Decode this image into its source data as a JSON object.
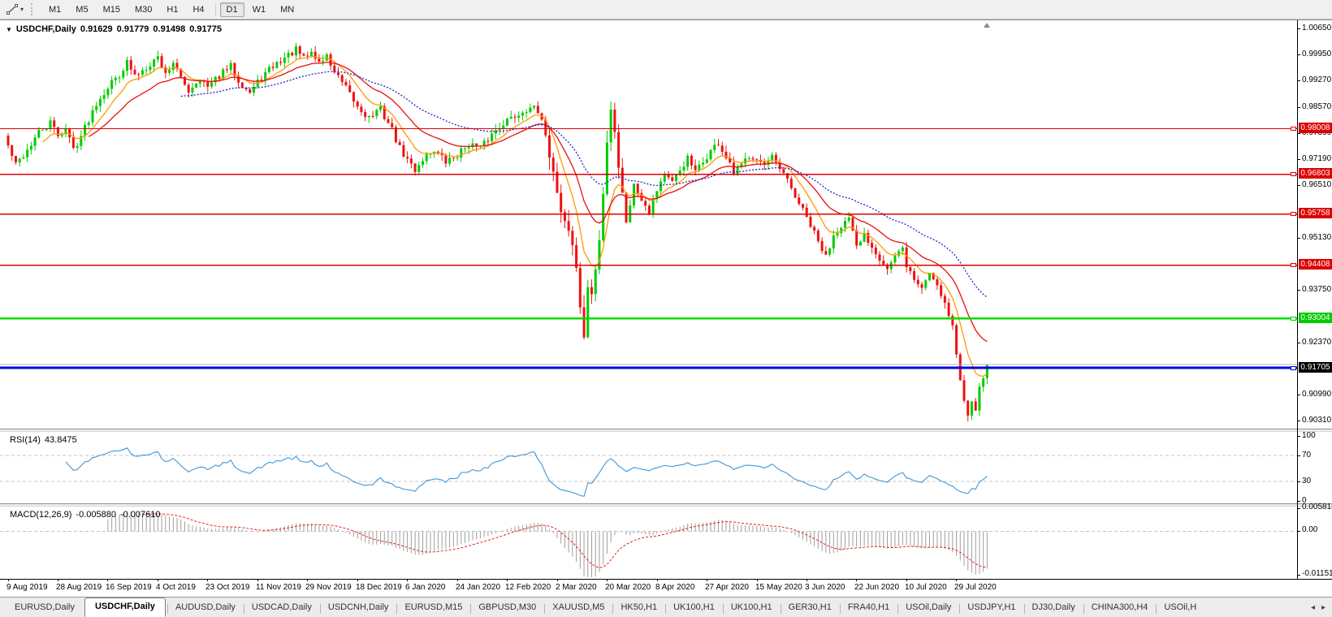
{
  "toolbar": {
    "tool_icon": "line-studies-icon",
    "dropdown_caret": "▾",
    "timeframes": [
      {
        "label": "M1",
        "active": false
      },
      {
        "label": "M5",
        "active": false
      },
      {
        "label": "M15",
        "active": false
      },
      {
        "label": "M30",
        "active": false
      },
      {
        "label": "H1",
        "active": false
      },
      {
        "label": "H4",
        "active": false
      },
      {
        "label": "D1",
        "active": true
      },
      {
        "label": "W1",
        "active": false
      },
      {
        "label": "MN",
        "active": false
      }
    ]
  },
  "chart": {
    "title": {
      "icon": "▼",
      "symbol": "USDCHF,Daily",
      "o": "0.91629",
      "h": "0.91779",
      "l": "0.91498",
      "c": "0.91775"
    },
    "price_axis": {
      "ticks": [
        {
          "label": "1.00650",
          "value": 1.0065
        },
        {
          "label": "0.99950",
          "value": 0.9995
        },
        {
          "label": "0.99270",
          "value": 0.9927
        },
        {
          "label": "0.98570",
          "value": 0.9857
        },
        {
          "label": "0.97890",
          "value": 0.9789
        },
        {
          "label": "0.97190",
          "value": 0.9719
        },
        {
          "label": "0.96510",
          "value": 0.9651
        },
        {
          "label": "0.95130",
          "value": 0.9513
        },
        {
          "label": "0.93750",
          "value": 0.9375
        },
        {
          "label": "0.92370",
          "value": 0.9237
        },
        {
          "label": "0.90990",
          "value": 0.9099
        },
        {
          "label": "0.90310",
          "value": 0.9031
        }
      ]
    },
    "levels": [
      {
        "label": "0.98008",
        "value": 0.98008,
        "line_color": "#e00000",
        "line_width": 1.4,
        "box_bg": "#dd0000"
      },
      {
        "label": "0.96803",
        "value": 0.96803,
        "line_color": "#e00000",
        "line_width": 1.4,
        "box_bg": "#dd0000"
      },
      {
        "label": "0.95758",
        "value": 0.95758,
        "line_color": "#e00000",
        "line_width": 1.4,
        "box_bg": "#dd0000"
      },
      {
        "label": "0.94408",
        "value": 0.94408,
        "line_color": "#e00000",
        "line_width": 1.8,
        "box_bg": "#dd0000"
      },
      {
        "label": "0.93004",
        "value": 0.93004,
        "line_color": "#00dd00",
        "line_width": 2.4,
        "box_bg": "#00cc00"
      },
      {
        "label": "0.91705",
        "value": 0.91705,
        "line_color": "#0000dd",
        "line_width": 3,
        "box_bg": "#000000"
      }
    ],
    "ask_line": {
      "value": 0.9179,
      "color": "#b8b8b8",
      "width": 1
    },
    "date_axis": [
      "9 Aug 2019",
      "28 Aug 2019",
      "16 Sep 2019",
      "4 Oct 2019",
      "23 Oct 2019",
      "11 Nov 2019",
      "29 Nov 2019",
      "18 Dec 2019",
      "6 Jan 2020",
      "24 Jan 2020",
      "12 Feb 2020",
      "2 Mar 2020",
      "20 Mar 2020",
      "8 Apr 2020",
      "27 Apr 2020",
      "15 May 2020",
      "3 Jun 2020",
      "22 Jun 2020",
      "10 Jul 2020",
      "29 Jul 2020"
    ]
  },
  "rsi_panel": {
    "name": "RSI(14)",
    "value": "43.8475",
    "axis": [
      {
        "label": "100",
        "value": 100
      },
      {
        "label": "70",
        "value": 70
      },
      {
        "label": "30",
        "value": 30
      },
      {
        "label": "0",
        "value": 0
      }
    ],
    "dashed_levels": [
      70,
      30
    ],
    "line_color": "#3e96d9"
  },
  "macd_panel": {
    "name": "MACD(12,26,9)",
    "value1": "-0.005880",
    "value2": "-0.007610",
    "axis": [
      {
        "label": "0.005818",
        "value": 0.005818
      },
      {
        "label": "0.00",
        "value": 0
      },
      {
        "label": "-0.011514",
        "value": -0.011514
      }
    ],
    "histogram_color": "#9e9e9e",
    "signal_color": "#e32222"
  },
  "tabs": {
    "items": [
      {
        "label": "EURUSD,Daily",
        "active": false
      },
      {
        "label": "USDCHF,Daily",
        "active": true
      },
      {
        "label": "AUDUSD,Daily",
        "active": false
      },
      {
        "label": "USDCAD,Daily",
        "active": false
      },
      {
        "label": "USDCNH,Daily",
        "active": false
      },
      {
        "label": "EURUSD,M15",
        "active": false
      },
      {
        "label": "GBPUSD,M30",
        "active": false
      },
      {
        "label": "XAUUSD,M5",
        "active": false
      },
      {
        "label": "HK50,H1",
        "active": false
      },
      {
        "label": "UK100,H1",
        "active": false
      },
      {
        "label": "UK100,H1",
        "active": false
      },
      {
        "label": "GER30,H1",
        "active": false
      },
      {
        "label": "FRA40,H1",
        "active": false
      },
      {
        "label": "USOil,Daily",
        "active": false
      },
      {
        "label": "USDJPY,H1",
        "active": false
      },
      {
        "label": "DJ30,Daily",
        "active": false
      },
      {
        "label": "CHINA300,H4",
        "active": false
      },
      {
        "label": "USOil,H",
        "active": false
      }
    ],
    "scroll_left": "◂",
    "scroll_right": "▸"
  },
  "chart_data": {
    "type": "candlestick",
    "symbol": "USDCHF",
    "timeframe": "Daily",
    "open": 0.91629,
    "high": 0.91779,
    "low": 0.91498,
    "close": 0.91775,
    "bars": 256,
    "price_axis_range": [
      0.9031,
      1.0065
    ],
    "up_color": "#00cc00",
    "down_color": "#ee1111",
    "moving_averages": [
      {
        "period": 9,
        "color": "#ff9900",
        "style": "solid"
      },
      {
        "period": 21,
        "color": "#e81010",
        "style": "solid"
      },
      {
        "period": 45,
        "color": "#2222cc",
        "style": "dashed"
      }
    ],
    "rsi": {
      "period": 14,
      "current": 43.8475,
      "scale": [
        0,
        100
      ],
      "levels": [
        70,
        30
      ]
    },
    "macd": {
      "fast": 12,
      "slow": 26,
      "signal": 9,
      "current_macd": -0.00588,
      "current_signal": -0.00761,
      "scale_max": 0.005818,
      "scale_min": -0.011514
    },
    "horizontal_levels": [
      0.98008,
      0.96803,
      0.95758,
      0.94408,
      0.93004,
      0.91705
    ],
    "waypoints": [
      [
        0,
        0.9755
      ],
      [
        2,
        0.9705
      ],
      [
        5,
        0.9745
      ],
      [
        8,
        0.979
      ],
      [
        11,
        0.9815
      ],
      [
        13,
        0.9785
      ],
      [
        15,
        0.98
      ],
      [
        17,
        0.9748
      ],
      [
        19,
        0.9782
      ],
      [
        23,
        0.987
      ],
      [
        26,
        0.9912
      ],
      [
        29,
        0.9945
      ],
      [
        31,
        0.9975
      ],
      [
        33,
        0.9938
      ],
      [
        36,
        0.9965
      ],
      [
        39,
        0.999
      ],
      [
        41,
        0.9945
      ],
      [
        43,
        0.9978
      ],
      [
        45,
        0.993
      ],
      [
        47,
        0.9902
      ],
      [
        50,
        0.9935
      ],
      [
        52,
        0.9908
      ],
      [
        55,
        0.994
      ],
      [
        58,
        0.9965
      ],
      [
        60,
        0.993
      ],
      [
        63,
        0.9896
      ],
      [
        66,
        0.9935
      ],
      [
        69,
        0.9965
      ],
      [
        72,
        0.9988
      ],
      [
        75,
        1.0008
      ],
      [
        77,
        0.9985
      ],
      [
        79,
        1.0002
      ],
      [
        81,
        0.9975
      ],
      [
        83,
        0.9992
      ],
      [
        85,
        0.995
      ],
      [
        88,
        0.9905
      ],
      [
        91,
        0.9858
      ],
      [
        94,
        0.983
      ],
      [
        97,
        0.9852
      ],
      [
        100,
        0.9798
      ],
      [
        102,
        0.9748
      ],
      [
        104,
        0.9718
      ],
      [
        106,
        0.9692
      ],
      [
        108,
        0.9722
      ],
      [
        111,
        0.9746
      ],
      [
        114,
        0.9712
      ],
      [
        117,
        0.9732
      ],
      [
        120,
        0.9762
      ],
      [
        123,
        0.9748
      ],
      [
        126,
        0.9786
      ],
      [
        129,
        0.9818
      ],
      [
        131,
        0.9828
      ],
      [
        134,
        0.9846
      ],
      [
        136,
        0.9862
      ],
      [
        138,
        0.984
      ],
      [
        140,
        0.979
      ],
      [
        142,
        0.9685
      ],
      [
        143,
        0.964
      ],
      [
        144,
        0.9585
      ],
      [
        146,
        0.9535
      ],
      [
        148,
        0.9438
      ],
      [
        150,
        0.9235
      ],
      [
        151,
        0.939
      ],
      [
        152,
        0.9365
      ],
      [
        153,
        0.9425
      ],
      [
        154,
        0.9505
      ],
      [
        155,
        0.9625
      ],
      [
        156,
        0.9775
      ],
      [
        157,
        0.9858
      ],
      [
        158,
        0.98
      ],
      [
        159,
        0.9705
      ],
      [
        160,
        0.9625
      ],
      [
        161,
        0.9565
      ],
      [
        162,
        0.9605
      ],
      [
        163,
        0.9652
      ],
      [
        165,
        0.9618
      ],
      [
        167,
        0.9585
      ],
      [
        169,
        0.9642
      ],
      [
        171,
        0.9682
      ],
      [
        173,
        0.9655
      ],
      [
        175,
        0.9692
      ],
      [
        177,
        0.9722
      ],
      [
        179,
        0.9685
      ],
      [
        181,
        0.9712
      ],
      [
        183,
        0.9742
      ],
      [
        185,
        0.9762
      ],
      [
        187,
        0.9722
      ],
      [
        189,
        0.9682
      ],
      [
        191,
        0.9702
      ],
      [
        193,
        0.9732
      ],
      [
        195,
        0.9725
      ],
      [
        197,
        0.9702
      ],
      [
        199,
        0.9722
      ],
      [
        201,
        0.9692
      ],
      [
        203,
        0.9662
      ],
      [
        205,
        0.9622
      ],
      [
        207,
        0.9585
      ],
      [
        209,
        0.9545
      ],
      [
        211,
        0.9502
      ],
      [
        213,
        0.9462
      ],
      [
        215,
        0.9522
      ],
      [
        217,
        0.9548
      ],
      [
        219,
        0.9562
      ],
      [
        221,
        0.9485
      ],
      [
        223,
        0.9522
      ],
      [
        225,
        0.9492
      ],
      [
        227,
        0.9462
      ],
      [
        229,
        0.9432
      ],
      [
        231,
        0.9462
      ],
      [
        233,
        0.9482
      ],
      [
        234,
        0.9442
      ],
      [
        236,
        0.9402
      ],
      [
        238,
        0.9382
      ],
      [
        240,
        0.9422
      ],
      [
        242,
        0.9392
      ],
      [
        244,
        0.9342
      ],
      [
        246,
        0.9282
      ],
      [
        247,
        0.9205
      ],
      [
        248,
        0.9135
      ],
      [
        249,
        0.9085
      ],
      [
        250,
        0.9052
      ],
      [
        251,
        0.9092
      ],
      [
        252,
        0.9065
      ],
      [
        253,
        0.9112
      ],
      [
        254,
        0.9152
      ],
      [
        255,
        0.91775
      ]
    ]
  }
}
